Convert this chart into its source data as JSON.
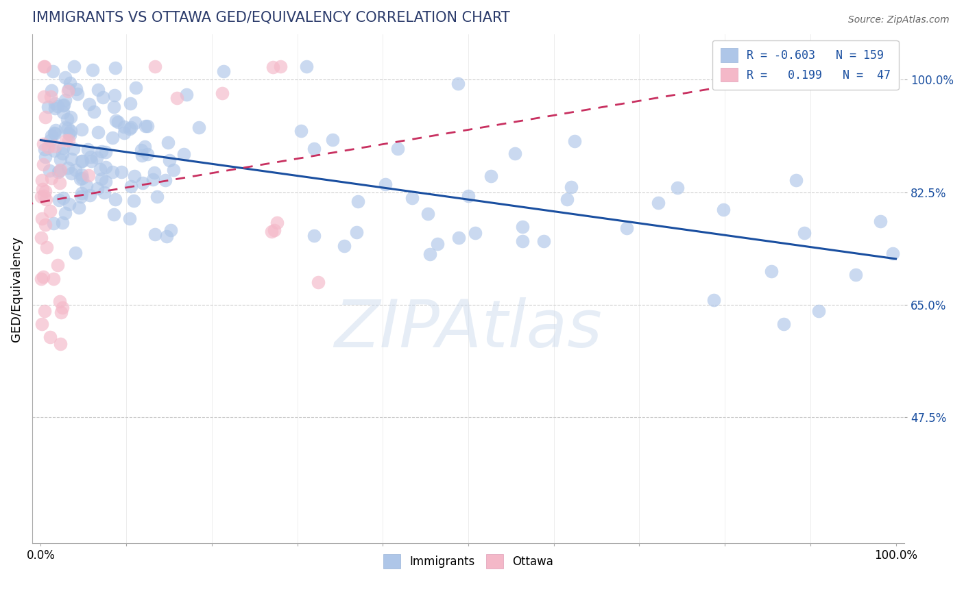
{
  "title": "IMMIGRANTS VS OTTAWA GED/EQUIVALENCY CORRELATION CHART",
  "source_text": "Source: ZipAtlas.com",
  "xlabel": "",
  "ylabel": "GED/Equivalency",
  "xlim": [
    -0.01,
    1.01
  ],
  "ylim": [
    0.28,
    1.07
  ],
  "yticks": [
    0.475,
    0.65,
    0.825,
    1.0
  ],
  "ytick_labels": [
    "47.5%",
    "65.0%",
    "82.5%",
    "100.0%"
  ],
  "watermark": "ZIPAtlas",
  "blue_R": -0.603,
  "blue_N": 159,
  "pink_R": 0.199,
  "pink_N": 47,
  "blue_color": "#aec6e8",
  "pink_color": "#f4b8c8",
  "blue_line_color": "#1a4fa0",
  "pink_line_color": "#c83060",
  "title_color": "#2a3a6a",
  "grid_color": "#cccccc",
  "background_color": "#ffffff",
  "seed": 99
}
